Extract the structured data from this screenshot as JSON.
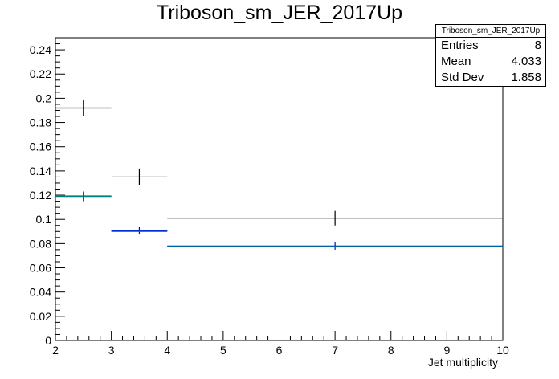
{
  "title": "Triboson_sm_JER_2017Up",
  "stats": {
    "title": "Triboson_sm_JER_2017Up",
    "rows": [
      {
        "label": "Entries",
        "value": "8"
      },
      {
        "label": "Mean",
        "value": "4.033"
      },
      {
        "label": "Std Dev",
        "value": "1.858"
      }
    ]
  },
  "chart_data": {
    "type": "histogram",
    "title": "Triboson_sm_JER_2017Up",
    "xlabel": "Jet multiplicity",
    "ylabel": "",
    "xlim": [
      2,
      10
    ],
    "ylim": [
      0,
      0.25
    ],
    "x_ticks": [
      "2",
      "3",
      "4",
      "5",
      "6",
      "7",
      "8",
      "9",
      "10"
    ],
    "y_ticks": [
      "0",
      "0.02",
      "0.04",
      "0.06",
      "0.08",
      "0.1",
      "0.12",
      "0.14",
      "0.16",
      "0.18",
      "0.2",
      "0.22",
      "0.24"
    ],
    "bins": [
      [
        2,
        3
      ],
      [
        3,
        4
      ],
      [
        4,
        10
      ]
    ],
    "series": [
      {
        "color": "#000000",
        "values": [
          0.192,
          0.135,
          0.101
        ],
        "errors": [
          0.007,
          0.007,
          0.006
        ]
      },
      {
        "color": "#00cc00",
        "values": [
          0.1195,
          0.0905,
          0.0775
        ],
        "errors": [
          0,
          0,
          0
        ]
      },
      {
        "color": "#0000ff",
        "values": [
          0.119,
          0.0905,
          0.078
        ],
        "errors": [
          0.004,
          0.003,
          0.003
        ]
      },
      {
        "color": "#008080",
        "values": [
          0.119,
          0.09,
          0.0777
        ],
        "errors": [
          0,
          0,
          0
        ]
      }
    ]
  }
}
